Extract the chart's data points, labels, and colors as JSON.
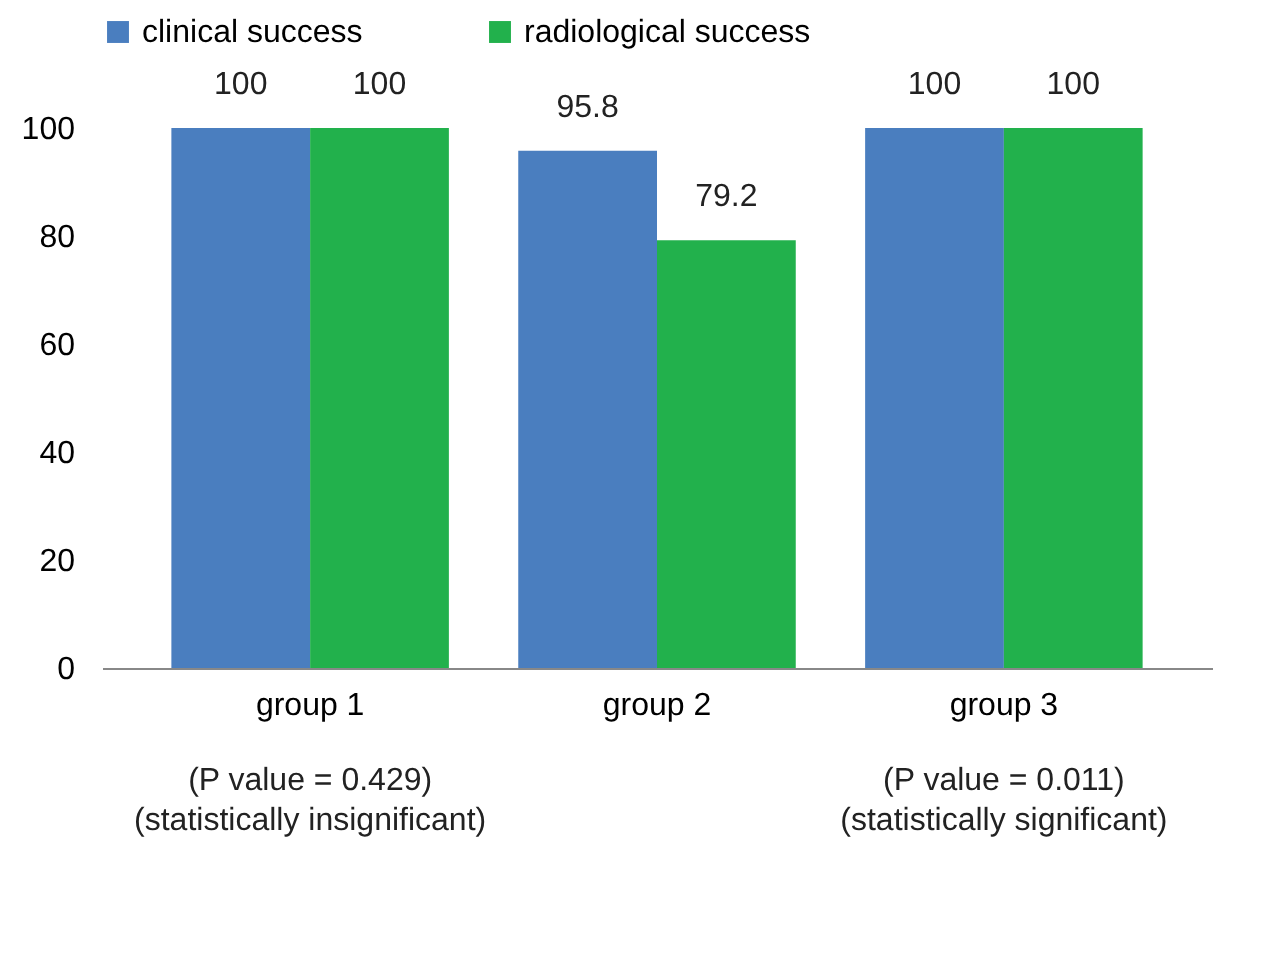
{
  "chart_data": {
    "type": "bar",
    "categories": [
      "group 1",
      "group 2",
      "group 3"
    ],
    "series": [
      {
        "name": "clinical success",
        "color": "#4a7ebf",
        "values": [
          100,
          95.8,
          100
        ]
      },
      {
        "name": "radiological success",
        "color": "#22b14c",
        "values": [
          100,
          79.2,
          100
        ]
      }
    ],
    "ylim": [
      0,
      100
    ],
    "yticks": [
      0,
      20,
      40,
      60,
      80,
      100
    ],
    "grid": false,
    "legend": "top",
    "data_labels": true,
    "annotations": [
      "(P value = 0.429)\n(statistically insignificant)",
      "(P value = 0.011)\n(statistically significant)"
    ]
  }
}
